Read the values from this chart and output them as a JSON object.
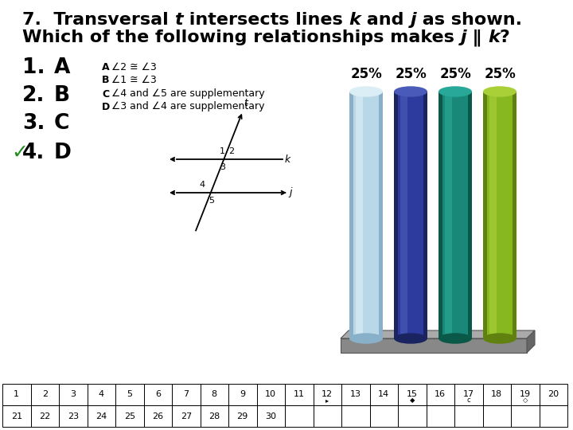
{
  "bar_colors_main": [
    "#b8d8e8",
    "#2d3b9e",
    "#1a8878",
    "#88b820"
  ],
  "bar_colors_light": [
    "#dceef5",
    "#4a5ab8",
    "#28a898",
    "#aad038"
  ],
  "bar_colors_dark": [
    "#88b0c8",
    "#1a2460",
    "#0a5848",
    "#608010"
  ],
  "background_color": "#ffffff",
  "checkmark_color": "#228B22",
  "grid_numbers_row1": [
    1,
    2,
    3,
    4,
    5,
    6,
    7,
    8,
    9,
    10,
    11,
    12,
    13,
    14,
    15,
    16,
    17,
    18,
    19,
    20
  ],
  "grid_numbers_row2": [
    21,
    22,
    23,
    24,
    25,
    26,
    27,
    28,
    29,
    30
  ],
  "bar_pct_labels": [
    "25%",
    "25%",
    "25%",
    "25%"
  ]
}
